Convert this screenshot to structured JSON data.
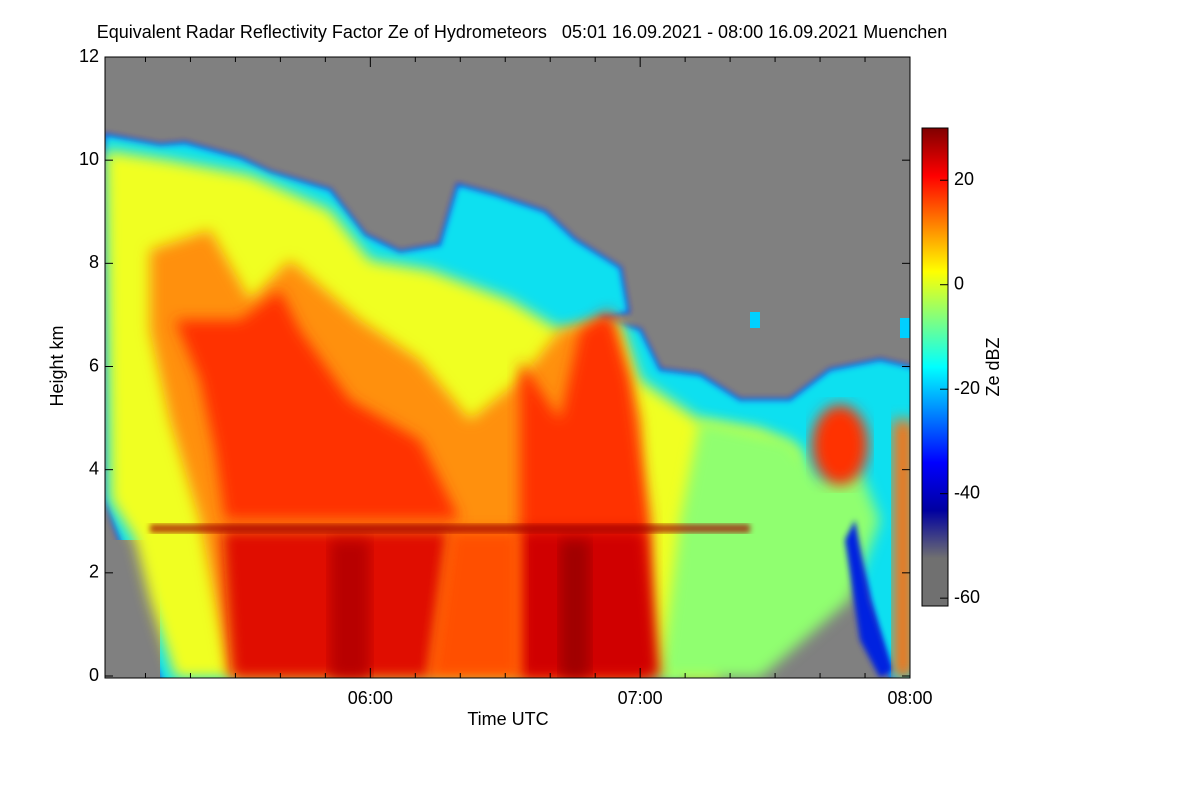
{
  "chart_data": {
    "type": "heatmap",
    "title": "Equivalent Radar Reflectivity Factor Ze of Hydrometeors   05:01 16.09.2021 - 08:00 16.09.2021 Muenchen",
    "xlabel": "Time UTC",
    "ylabel": "Height km",
    "colorbar_label": "Ze dBZ",
    "xlim": [
      301,
      480
    ],
    "xticks": [
      {
        "value": 360,
        "label": "06:00"
      },
      {
        "value": 420,
        "label": "07:00"
      },
      {
        "value": 480,
        "label": "08:00"
      }
    ],
    "x_minor_ticks": [
      310,
      320,
      330,
      340,
      350,
      370,
      380,
      390,
      400,
      410,
      430,
      440,
      450,
      460,
      470
    ],
    "ylim": [
      0,
      12
    ],
    "yticks": [
      0,
      2,
      4,
      6,
      8,
      10,
      12
    ],
    "clim": [
      -61.5,
      30
    ],
    "cticks": [
      -60,
      -40,
      -20,
      0,
      20
    ],
    "colormap": [
      "#707070",
      "#707070",
      "#0000a0",
      "#0000ff",
      "#0080ff",
      "#00ffff",
      "#80ff80",
      "#ffff00",
      "#ff8000",
      "#ff0000",
      "#800000"
    ]
  }
}
